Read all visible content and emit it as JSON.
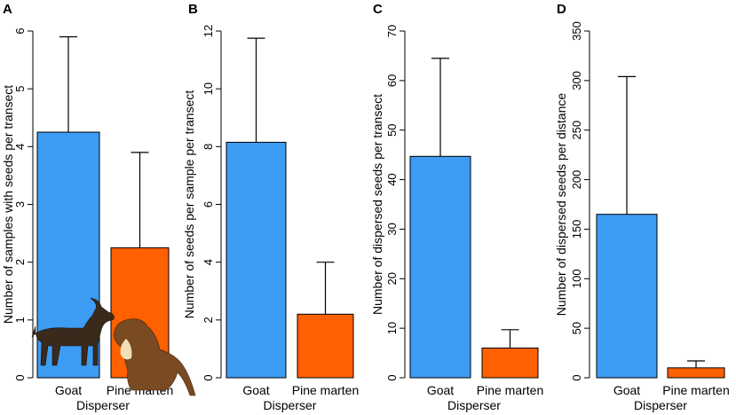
{
  "figure": {
    "colors": {
      "goat": "#3D9CF4",
      "pine_marten": "#FF6000",
      "axis": "#000000"
    },
    "icons": {
      "goat": "goat-silhouette-icon",
      "pine_marten": "pine-marten-silhouette-icon"
    }
  },
  "chart_data": [
    {
      "type": "bar",
      "panel": "A",
      "title": "",
      "xlabel": "Disperser",
      "ylabel": "Number of samples with seeds per transect",
      "categories": [
        "Goat",
        "Pine marten"
      ],
      "values": [
        4.25,
        2.25
      ],
      "error_upper": [
        5.9,
        3.9
      ],
      "ylim": [
        0,
        6
      ],
      "yticks": [
        0,
        1,
        2,
        3,
        4,
        5,
        6
      ],
      "ytick_labels": [
        "0",
        "1",
        "2",
        "3",
        "4",
        "5",
        "6"
      ]
    },
    {
      "type": "bar",
      "panel": "B",
      "title": "",
      "xlabel": "Disperser",
      "ylabel": "Number of seeds per sample per transect",
      "categories": [
        "Goat",
        "Pine marten"
      ],
      "values": [
        8.15,
        2.2
      ],
      "error_upper": [
        11.75,
        4.0
      ],
      "ylim": [
        0,
        12
      ],
      "yticks": [
        0,
        2,
        4,
        6,
        8,
        10,
        12
      ],
      "ytick_labels": [
        "0",
        "2",
        "4",
        "6",
        "8",
        "10",
        "12"
      ]
    },
    {
      "type": "bar",
      "panel": "C",
      "title": "",
      "xlabel": "Disperser",
      "ylabel": "Number of dispersed seeds per transect",
      "categories": [
        "Goat",
        "Pine marten"
      ],
      "values": [
        44.7,
        6.0
      ],
      "error_upper": [
        64.5,
        9.7
      ],
      "ylim": [
        0,
        70
      ],
      "yticks": [
        0,
        10,
        20,
        30,
        40,
        50,
        60,
        70
      ],
      "ytick_labels": [
        "0",
        "10",
        "20",
        "30",
        "40",
        "50",
        "60",
        "70"
      ]
    },
    {
      "type": "bar",
      "panel": "D",
      "title": "",
      "xlabel": "Disperser",
      "ylabel": "Number of dispersed seeds per distance",
      "categories": [
        "Goat",
        "Pine marten"
      ],
      "values": [
        165,
        10
      ],
      "error_upper": [
        304,
        17
      ],
      "ylim": [
        0,
        350
      ],
      "yticks": [
        0,
        50,
        100,
        150,
        200,
        250,
        300,
        350
      ],
      "ytick_labels": [
        "0",
        "50",
        "100",
        "150",
        "200",
        "250",
        "300",
        "350"
      ]
    }
  ]
}
